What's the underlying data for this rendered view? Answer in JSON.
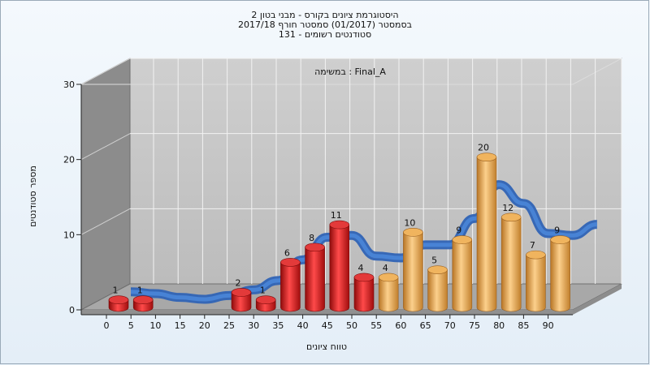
{
  "chart_data": {
    "type": "bar",
    "title_lines": [
      "היסטוגרמת ציונים בקורס - מבני בטון 2",
      "בסמסטר  (01/2017)  סמסטר חורף 2017/18",
      "131 - סטודנטים רשומים"
    ],
    "annotation": "במשימה : Final_A",
    "xlabel": "טווח ציונים",
    "ylabel": "מספר סטודנטים",
    "categories": [
      "0",
      "5",
      "10",
      "15",
      "20",
      "25",
      "30",
      "35",
      "40",
      "45",
      "50",
      "55",
      "60",
      "65",
      "70",
      "75",
      "80",
      "85",
      "90"
    ],
    "values": [
      1,
      1,
      0,
      0,
      0,
      2,
      1,
      6,
      8,
      11,
      4,
      4,
      10,
      5,
      9,
      20,
      12,
      7,
      9
    ],
    "ylim": [
      0,
      30
    ],
    "yticks": [
      0,
      10,
      20,
      30
    ],
    "fail_threshold": 55,
    "colors": {
      "fail_bar": "#d81818",
      "pass_bar": "#e8a74c",
      "trend_line": "#3a73c8",
      "back_wall": "#c3c3c3",
      "side_wall": "#8a8a8a",
      "floor": "#a7a7a7"
    }
  }
}
